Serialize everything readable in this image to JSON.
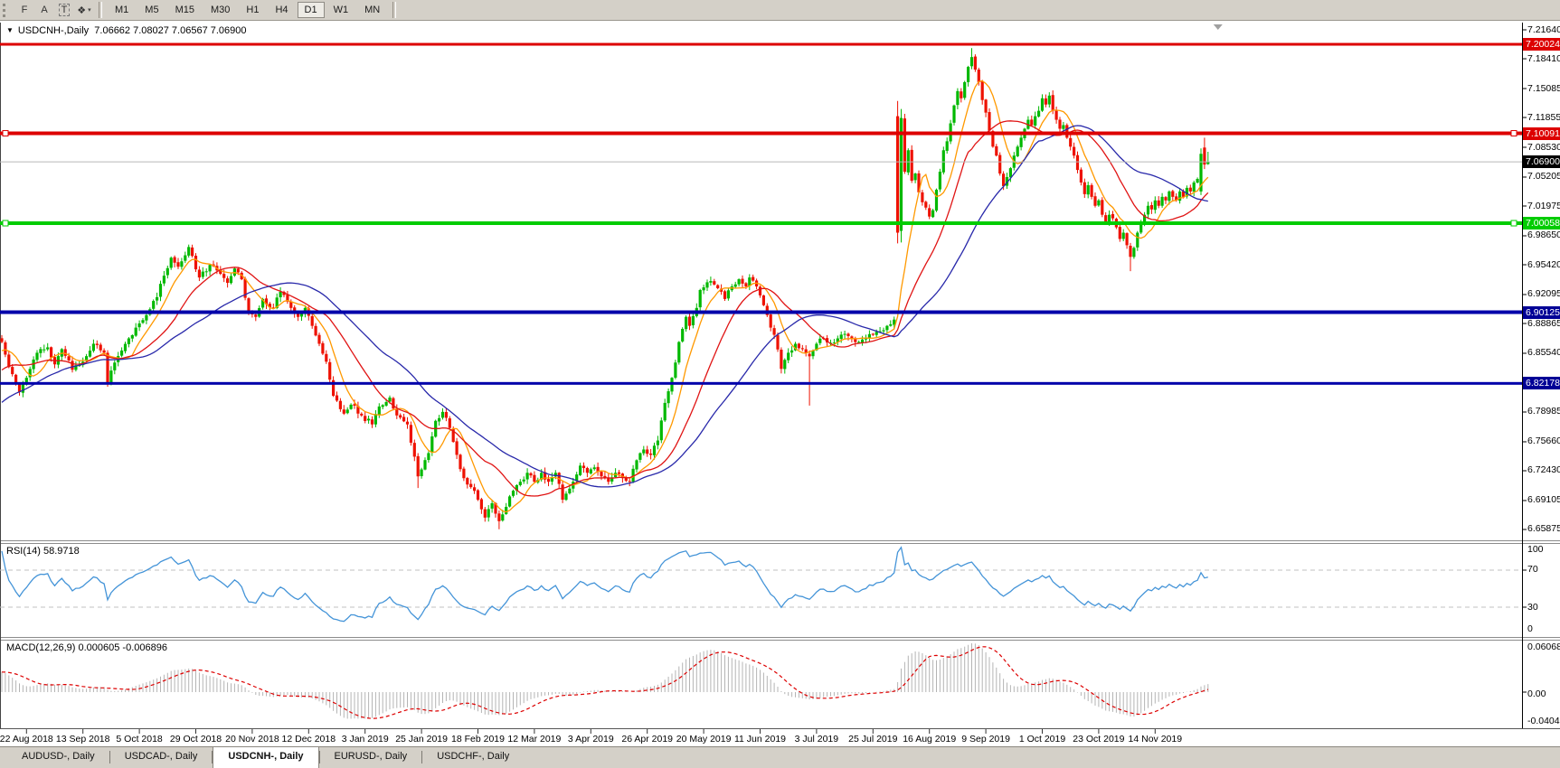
{
  "toolbar": {
    "icons": [
      {
        "name": "crosshair-grid-icon",
        "glyph": "F",
        "boxed": false,
        "caret": false
      },
      {
        "name": "font-icon",
        "glyph": "A",
        "boxed": false,
        "caret": false
      },
      {
        "name": "text-label-icon",
        "glyph": "T",
        "boxed": true,
        "caret": false
      },
      {
        "name": "shapes-dropdown-icon",
        "glyph": "❖",
        "boxed": false,
        "caret": true
      }
    ],
    "caret_glyph": "▾",
    "timeframes": [
      "M1",
      "M5",
      "M15",
      "M30",
      "H1",
      "H4",
      "D1",
      "W1",
      "MN"
    ],
    "active_timeframe": "D1"
  },
  "chart": {
    "collapse_glyph": "▼",
    "title_symbol": "USDCNH-,Daily",
    "title_ohlc": "7.06662 7.08027 7.06567 7.06900",
    "price_axis": {
      "ticks": [
        7.2164,
        7.1841,
        7.15085,
        7.11855,
        7.0853,
        7.05205,
        7.01975,
        6.9865,
        6.9542,
        6.92095,
        6.88865,
        6.8554,
        6.78985,
        6.7566,
        6.7243,
        6.69105,
        6.65875
      ],
      "badges": [
        {
          "label": "7.20024",
          "price": 7.20024,
          "bg": "#dd0000",
          "fg": "#ffffff"
        },
        {
          "label": "7.10091",
          "price": 7.10091,
          "bg": "#dd0000",
          "fg": "#ffffff"
        },
        {
          "label": "7.06900",
          "price": 7.069,
          "bg": "#000000",
          "fg": "#ffffff"
        },
        {
          "label": "7.00058",
          "price": 7.00058,
          "bg": "#00cc00",
          "fg": "#ffffff"
        },
        {
          "label": "6.90125",
          "price": 6.90125,
          "bg": "#000096",
          "fg": "#ffffff"
        },
        {
          "label": "6.82178",
          "price": 6.82178,
          "bg": "#000096",
          "fg": "#ffffff"
        }
      ]
    },
    "levels": [
      {
        "price": 7.20024,
        "color": "#dd0000",
        "width": 3,
        "handles": false
      },
      {
        "price": 7.10091,
        "color": "#dd0000",
        "width": 4,
        "handles": true
      },
      {
        "price": 7.00058,
        "color": "#00cc00",
        "width": 4,
        "handles": true
      },
      {
        "price": 6.90125,
        "color": "#0000aa",
        "width": 4,
        "handles": false
      },
      {
        "price": 6.82178,
        "color": "#0000aa",
        "width": 3,
        "handles": false
      }
    ],
    "current_price": {
      "label": "7.06900",
      "price": 7.069,
      "line_color": "#b8b8b8"
    },
    "date_axis": [
      "22 Aug 2018",
      "13 Sep 2018",
      "5 Oct 2018",
      "29 Oct 2018",
      "20 Nov 2018",
      "12 Dec 2018",
      "3 Jan 2019",
      "25 Jan 2019",
      "18 Feb 2019",
      "12 Mar 2019",
      "3 Apr 2019",
      "26 Apr 2019",
      "20 May 2019",
      "11 Jun 2019",
      "3 Jul 2019",
      "25 Jul 2019",
      "16 Aug 2019",
      "9 Sep 2019",
      "1 Oct 2019",
      "23 Oct 2019",
      "14 Nov 2019"
    ],
    "chart_data": {
      "type": "candlestick",
      "symbol": "USDCNH-",
      "timeframe": "Daily",
      "bars_total": 343,
      "first_tick_bar": 7,
      "tick_interval": 16,
      "price_top": 7.2164,
      "price_bottom": 6.65875,
      "candle_up": "#00b800",
      "candle_down": "#ee1100",
      "ma": [
        {
          "period": 8,
          "color": "#ff9900"
        },
        {
          "period": 20,
          "color": "#e01414"
        },
        {
          "period": 40,
          "color": "#2828aa"
        }
      ],
      "rsi_period": 14,
      "macd_params": [
        12,
        26,
        9
      ],
      "prehistory": {
        "bars": 60,
        "start": 6.655
      },
      "close_anchors": [
        [
          0,
          6.868
        ],
        [
          2,
          6.84
        ],
        [
          5,
          6.812
        ],
        [
          7,
          6.828
        ],
        [
          10,
          6.856
        ],
        [
          13,
          6.862
        ],
        [
          15,
          6.843
        ],
        [
          17,
          6.86
        ],
        [
          20,
          6.837
        ],
        [
          23,
          6.846
        ],
        [
          26,
          6.866
        ],
        [
          29,
          6.856
        ],
        [
          30,
          6.822
        ],
        [
          32,
          6.845
        ],
        [
          36,
          6.872
        ],
        [
          38,
          6.884
        ],
        [
          41,
          6.898
        ],
        [
          44,
          6.918
        ],
        [
          46,
          6.942
        ],
        [
          48,
          6.962
        ],
        [
          50,
          6.952
        ],
        [
          53,
          6.974
        ],
        [
          54,
          6.964
        ],
        [
          56,
          6.94
        ],
        [
          59,
          6.954
        ],
        [
          62,
          6.944
        ],
        [
          64,
          6.934
        ],
        [
          66,
          6.95
        ],
        [
          68,
          6.938
        ],
        [
          70,
          6.9
        ],
        [
          72,
          6.896
        ],
        [
          74,
          6.916
        ],
        [
          77,
          6.906
        ],
        [
          79,
          6.924
        ],
        [
          82,
          6.906
        ],
        [
          84,
          6.896
        ],
        [
          86,
          6.906
        ],
        [
          88,
          6.886
        ],
        [
          90,
          6.866
        ],
        [
          92,
          6.846
        ],
        [
          94,
          6.808
        ],
        [
          97,
          6.788
        ],
        [
          99,
          6.798
        ],
        [
          102,
          6.786
        ],
        [
          105,
          6.776
        ],
        [
          107,
          6.796
        ],
        [
          110,
          6.806
        ],
        [
          112,
          6.786
        ],
        [
          115,
          6.776
        ],
        [
          117,
          6.74
        ],
        [
          118,
          6.718
        ],
        [
          121,
          6.744
        ],
        [
          123,
          6.78
        ],
        [
          125,
          6.79
        ],
        [
          127,
          6.772
        ],
        [
          129,
          6.742
        ],
        [
          131,
          6.716
        ],
        [
          133,
          6.706
        ],
        [
          135,
          6.692
        ],
        [
          137,
          6.672
        ],
        [
          139,
          6.688
        ],
        [
          141,
          6.668
        ],
        [
          143,
          6.684
        ],
        [
          145,
          6.702
        ],
        [
          147,
          6.712
        ],
        [
          149,
          6.722
        ],
        [
          151,
          6.712
        ],
        [
          153,
          6.722
        ],
        [
          155,
          6.712
        ],
        [
          157,
          6.722
        ],
        [
          159,
          6.692
        ],
        [
          162,
          6.712
        ],
        [
          164,
          6.73
        ],
        [
          166,
          6.722
        ],
        [
          168,
          6.728
        ],
        [
          170,
          6.718
        ],
        [
          172,
          6.712
        ],
        [
          174,
          6.722
        ],
        [
          176,
          6.716
        ],
        [
          178,
          6.712
        ],
        [
          180,
          6.736
        ],
        [
          182,
          6.748
        ],
        [
          184,
          6.742
        ],
        [
          186,
          6.758
        ],
        [
          188,
          6.8
        ],
        [
          190,
          6.828
        ],
        [
          192,
          6.868
        ],
        [
          194,
          6.896
        ],
        [
          195,
          6.886
        ],
        [
          197,
          6.906
        ],
        [
          198,
          6.926
        ],
        [
          201,
          6.936
        ],
        [
          203,
          6.928
        ],
        [
          205,
          6.916
        ],
        [
          207,
          6.93
        ],
        [
          209,
          6.938
        ],
        [
          211,
          6.93
        ],
        [
          212,
          6.94
        ],
        [
          214,
          6.93
        ],
        [
          215,
          6.92
        ],
        [
          217,
          6.898
        ],
        [
          219,
          6.876
        ],
        [
          221,
          6.838
        ],
        [
          223,
          6.856
        ],
        [
          225,
          6.866
        ],
        [
          227,
          6.86
        ],
        [
          229,
          6.852
        ],
        [
          231,
          6.866
        ],
        [
          233,
          6.872
        ],
        [
          235,
          6.867
        ],
        [
          237,
          6.872
        ],
        [
          239,
          6.877
        ],
        [
          241,
          6.872
        ],
        [
          243,
          6.868
        ],
        [
          245,
          6.872
        ],
        [
          247,
          6.876
        ],
        [
          249,
          6.88
        ],
        [
          251,
          6.886
        ],
        [
          253,
          6.893
        ],
        [
          254,
          6.99
        ],
        [
          255,
          7.118
        ],
        [
          256,
          7.058
        ],
        [
          257,
          7.082
        ],
        [
          258,
          7.048
        ],
        [
          259,
          7.056
        ],
        [
          260,
          7.035
        ],
        [
          262,
          7.018
        ],
        [
          263,
          7.008
        ],
        [
          264,
          7.015
        ],
        [
          265,
          7.038
        ],
        [
          266,
          7.058
        ],
        [
          267,
          7.082
        ],
        [
          268,
          7.092
        ],
        [
          269,
          7.112
        ],
        [
          270,
          7.132
        ],
        [
          271,
          7.148
        ],
        [
          272,
          7.14
        ],
        [
          273,
          7.158
        ],
        [
          274,
          7.175
        ],
        [
          275,
          7.186
        ],
        [
          276,
          7.172
        ],
        [
          277,
          7.158
        ],
        [
          278,
          7.138
        ],
        [
          279,
          7.124
        ],
        [
          280,
          7.104
        ],
        [
          281,
          7.086
        ],
        [
          282,
          7.076
        ],
        [
          283,
          7.056
        ],
        [
          284,
          7.042
        ],
        [
          285,
          7.052
        ],
        [
          286,
          7.062
        ],
        [
          287,
          7.076
        ],
        [
          288,
          7.086
        ],
        [
          289,
          7.096
        ],
        [
          290,
          7.106
        ],
        [
          291,
          7.116
        ],
        [
          292,
          7.11
        ],
        [
          293,
          7.12
        ],
        [
          294,
          7.126
        ],
        [
          295,
          7.14
        ],
        [
          296,
          7.133
        ],
        [
          297,
          7.143
        ],
        [
          298,
          7.126
        ],
        [
          299,
          7.116
        ],
        [
          300,
          7.106
        ],
        [
          301,
          7.11
        ],
        [
          302,
          7.096
        ],
        [
          303,
          7.086
        ],
        [
          304,
          7.076
        ],
        [
          305,
          7.06
        ],
        [
          306,
          7.046
        ],
        [
          307,
          7.033
        ],
        [
          308,
          7.043
        ],
        [
          309,
          7.03
        ],
        [
          310,
          7.02
        ],
        [
          311,
          7.026
        ],
        [
          312,
          7.01
        ],
        [
          313,
          7.0
        ],
        [
          314,
          7.01
        ],
        [
          315,
          7.006
        ],
        [
          316,
          6.996
        ],
        [
          317,
          6.983
        ],
        [
          318,
          6.99
        ],
        [
          319,
          6.976
        ],
        [
          320,
          6.963
        ],
        [
          321,
          6.973
        ],
        [
          322,
          6.99
        ],
        [
          323,
          7.0
        ],
        [
          324,
          7.01
        ],
        [
          325,
          7.02
        ],
        [
          326,
          7.016
        ],
        [
          327,
          7.026
        ],
        [
          328,
          7.02
        ],
        [
          329,
          7.03
        ],
        [
          330,
          7.026
        ],
        [
          331,
          7.036
        ],
        [
          332,
          7.03
        ],
        [
          333,
          7.026
        ],
        [
          334,
          7.036
        ],
        [
          335,
          7.03
        ],
        [
          336,
          7.04
        ],
        [
          337,
          7.036
        ],
        [
          338,
          7.046
        ],
        [
          339,
          7.05
        ],
        [
          340,
          7.078
        ],
        [
          341,
          7.066
        ],
        [
          342,
          7.069
        ]
      ],
      "overrides": {
        "118": {
          "l": 6.705
        },
        "141": {
          "l": 6.659
        },
        "229": {
          "l": 6.797
        },
        "254": {
          "o": 7.12,
          "h": 7.137,
          "l": 6.978,
          "c": 6.99
        },
        "255": {
          "o": 6.992,
          "h": 7.128,
          "l": 6.979,
          "c": 7.118
        },
        "275": {
          "h": 7.196
        },
        "320": {
          "l": 6.947
        },
        "340": {
          "o": 7.036,
          "h": 7.084,
          "l": 7.032,
          "c": 7.078
        },
        "341": {
          "o": 7.085,
          "h": 7.096,
          "l": 7.061,
          "c": 7.066
        },
        "342": {
          "o": 7.06662,
          "h": 7.08027,
          "l": 7.06567,
          "c": 7.069
        }
      }
    }
  },
  "rsi_panel": {
    "label": "RSI(14) 58.9718",
    "line_color": "#4494d8",
    "axis_labels": [
      "100",
      "70",
      "30",
      "0"
    ],
    "upper": 70,
    "lower": 30
  },
  "macd_panel": {
    "label": "MACD(12,26,9) 0.000605 -0.006896",
    "axis_labels": [
      "0.060687",
      "0.00",
      "-0.040432"
    ],
    "hist_color": "#b4b4b4",
    "signal_color": "#dd0000"
  },
  "tabs": {
    "items": [
      "AUDUSD-, Daily",
      "USDCAD-, Daily",
      "USDCNH-, Daily",
      "EURUSD-, Daily",
      "USDCHF-, Daily"
    ],
    "active_index": 2
  }
}
